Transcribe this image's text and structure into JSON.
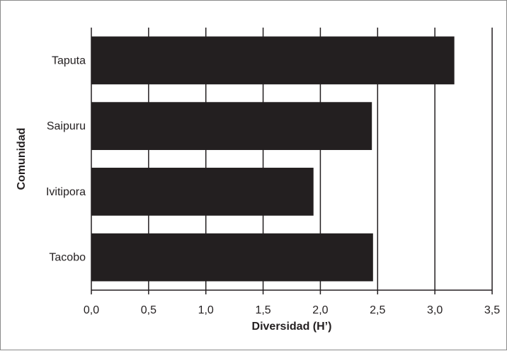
{
  "chart_data": {
    "type": "bar",
    "orientation": "horizontal",
    "categories": [
      "Taputa",
      "Saipuru",
      "Ivitipora",
      "Tacobo"
    ],
    "values": [
      3.17,
      2.45,
      1.94,
      2.46
    ],
    "xlabel": "Diversidad (H’)",
    "ylabel": "Comunidad",
    "xlim": [
      0,
      3.5
    ],
    "xticks": [
      "0,0",
      "0,5",
      "1,0",
      "1,5",
      "2,0",
      "2,5",
      "3,0",
      "3,5"
    ],
    "grid": "vertical",
    "bar_color": "#231f20",
    "grid_color": "#231f20"
  }
}
